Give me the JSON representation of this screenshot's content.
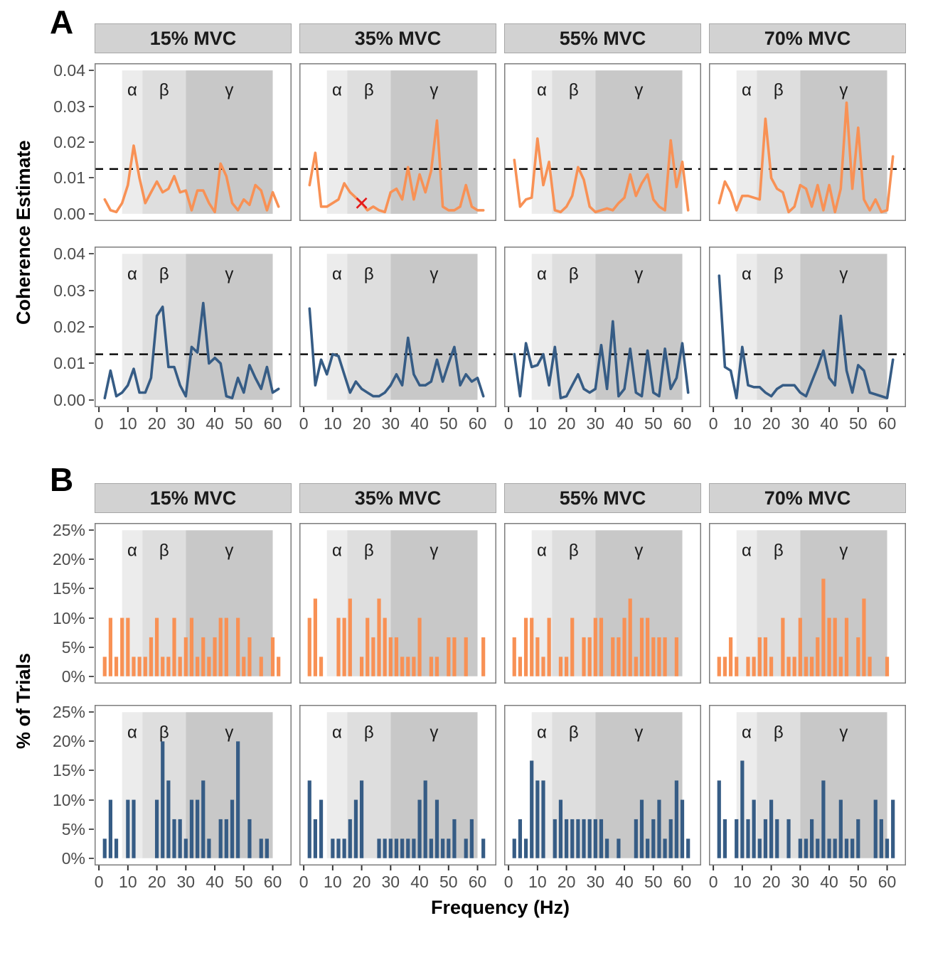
{
  "xlabel": "Frequency (Hz)",
  "colors": {
    "orange": "#F89155",
    "blue": "#365C85",
    "red": "#E41A1C",
    "band_alpha": "#ECECEC",
    "band_beta": "#DEDEDE",
    "band_gamma": "#C8C8C8",
    "header_bg": "#D2D2D2",
    "border": "#7D7D7D",
    "tick_text": "#4D4D4D",
    "threshold": "#000000"
  },
  "bands": [
    {
      "label": "α",
      "from": 8,
      "to": 15,
      "color_key": "band_alpha"
    },
    {
      "label": "β",
      "from": 15,
      "to": 30,
      "color_key": "band_beta"
    },
    {
      "label": "γ",
      "from": 30,
      "to": 60,
      "color_key": "band_gamma"
    }
  ],
  "chart_data": [
    {
      "panel": "A",
      "type": "line",
      "ylabel": "Coherence Estimate",
      "ylim": [
        0,
        0.04
      ],
      "yticks": [
        0,
        0.01,
        0.02,
        0.03,
        0.04
      ],
      "ytick_labels": [
        "0.00",
        "0.01",
        "0.02",
        "0.03",
        "0.04"
      ],
      "xticks": [
        0,
        10,
        20,
        30,
        40,
        50,
        60
      ],
      "threshold": 0.0125,
      "columns": [
        "15% MVC",
        "35% MVC",
        "55% MVC",
        "70% MVC"
      ],
      "x": [
        2,
        4,
        6,
        8,
        10,
        12,
        14,
        16,
        18,
        20,
        22,
        24,
        26,
        28,
        30,
        32,
        34,
        36,
        38,
        40,
        42,
        44,
        46,
        48,
        50,
        52,
        54,
        56,
        58,
        60,
        62
      ],
      "rows": [
        {
          "name": "coherence-row-1",
          "color_key": "orange",
          "series": [
            [
              0.004,
              0.001,
              0.0005,
              0.003,
              0.008,
              0.019,
              0.01,
              0.003,
              0.006,
              0.009,
              0.006,
              0.007,
              0.0105,
              0.006,
              0.0065,
              0.001,
              0.0065,
              0.0065,
              0.003,
              0.0005,
              0.014,
              0.0105,
              0.003,
              0.001,
              0.004,
              0.0025,
              0.008,
              0.0065,
              0.001,
              0.006,
              0.002
            ],
            [
              0.008,
              0.017,
              0.002,
              0.002,
              0.003,
              0.004,
              0.0085,
              0.006,
              0.0045,
              0.003,
              0.001,
              0.002,
              0.001,
              0.0005,
              0.006,
              0.007,
              0.004,
              0.013,
              0.004,
              0.011,
              0.006,
              0.012,
              0.026,
              0.002,
              0.001,
              0.001,
              0.002,
              0.008,
              0.002,
              0.001,
              0.001
            ],
            [
              0.015,
              0.002,
              0.004,
              0.0045,
              0.021,
              0.008,
              0.0145,
              0.001,
              0.0005,
              0.002,
              0.005,
              0.013,
              0.0095,
              0.002,
              0.0005,
              0.001,
              0.0015,
              0.001,
              0.003,
              0.0045,
              0.011,
              0.005,
              0.0085,
              0.011,
              0.004,
              0.002,
              0.001,
              0.0205,
              0.0075,
              0.0145,
              0.001
            ],
            [
              0.003,
              0.009,
              0.006,
              0.001,
              0.005,
              0.005,
              0.0045,
              0.004,
              0.0265,
              0.01,
              0.007,
              0.006,
              0.0005,
              0.002,
              0.008,
              0.007,
              0.002,
              0.008,
              0.001,
              0.008,
              0.0005,
              0.007,
              0.031,
              0.007,
              0.024,
              0.004,
              0.001,
              0.004,
              0.0005,
              0.001,
              0.016
            ]
          ],
          "markers": [
            {
              "col": 1,
              "x": 20,
              "y": 0.003,
              "shape": "x",
              "color_key": "red"
            }
          ]
        },
        {
          "name": "coherence-row-2",
          "color_key": "blue",
          "series": [
            [
              0.0005,
              0.008,
              0.001,
              0.002,
              0.004,
              0.0085,
              0.002,
              0.002,
              0.006,
              0.023,
              0.0255,
              0.009,
              0.009,
              0.004,
              0.001,
              0.0145,
              0.013,
              0.0265,
              0.01,
              0.0115,
              0.01,
              0.001,
              0.0005,
              0.006,
              0.002,
              0.0095,
              0.006,
              0.003,
              0.009,
              0.002,
              0.003
            ],
            [
              0.025,
              0.004,
              0.011,
              0.007,
              0.0125,
              0.012,
              0.007,
              0.002,
              0.005,
              0.003,
              0.002,
              0.001,
              0.001,
              0.002,
              0.004,
              0.007,
              0.004,
              0.017,
              0.007,
              0.004,
              0.004,
              0.005,
              0.011,
              0.005,
              0.01,
              0.0145,
              0.004,
              0.007,
              0.005,
              0.006,
              0.001
            ],
            [
              0.0125,
              0.001,
              0.0155,
              0.009,
              0.0095,
              0.0125,
              0.004,
              0.0145,
              0.0005,
              0.001,
              0.004,
              0.007,
              0.003,
              0.002,
              0.003,
              0.015,
              0.003,
              0.0215,
              0.001,
              0.003,
              0.014,
              0.002,
              0.001,
              0.0135,
              0.002,
              0.001,
              0.014,
              0.003,
              0.006,
              0.0155,
              0.002
            ],
            [
              0.034,
              0.009,
              0.008,
              0.0005,
              0.0145,
              0.004,
              0.0035,
              0.0035,
              0.002,
              0.001,
              0.003,
              0.004,
              0.004,
              0.004,
              0.002,
              0.001,
              0.005,
              0.009,
              0.0135,
              0.006,
              0.004,
              0.023,
              0.008,
              0.002,
              0.0095,
              0.008,
              0.002,
              0.0015,
              0.001,
              0.0005,
              0.011
            ]
          ],
          "markers": []
        }
      ]
    },
    {
      "panel": "B",
      "type": "bar",
      "ylabel": "% of Trials",
      "ylim": [
        0,
        25
      ],
      "yticks": [
        0,
        5,
        10,
        15,
        20,
        25
      ],
      "ytick_labels": [
        "0%",
        "5%",
        "10%",
        "15%",
        "20%",
        "25%"
      ],
      "xticks": [
        0,
        10,
        20,
        30,
        40,
        50,
        60
      ],
      "threshold": null,
      "columns": [
        "15% MVC",
        "35% MVC",
        "55% MVC",
        "70% MVC"
      ],
      "x": [
        2,
        4,
        6,
        8,
        10,
        12,
        14,
        16,
        18,
        20,
        22,
        24,
        26,
        28,
        30,
        32,
        34,
        36,
        38,
        40,
        42,
        44,
        46,
        48,
        50,
        52,
        54,
        56,
        58,
        60,
        62
      ],
      "rows": [
        {
          "name": "trials-row-1",
          "color_key": "orange",
          "series": [
            [
              3.33,
              10,
              3.33,
              10,
              10,
              3.33,
              3.33,
              3.33,
              6.67,
              10,
              3.33,
              3.33,
              10,
              3.33,
              6.67,
              10,
              3.33,
              6.67,
              3.33,
              6.67,
              10,
              10,
              0,
              10,
              3.33,
              6.67,
              0,
              3.33,
              0,
              6.67,
              3.33
            ],
            [
              10,
              13.3,
              3.33,
              0,
              0,
              10,
              10,
              13.3,
              0,
              3.33,
              10,
              6.67,
              13.3,
              10,
              6.67,
              6.67,
              3.33,
              3.33,
              3.33,
              10,
              0,
              3.33,
              3.33,
              0,
              6.67,
              6.67,
              0,
              6.67,
              0,
              0,
              6.67
            ],
            [
              6.67,
              3.33,
              10,
              10,
              6.67,
              3.33,
              10,
              0,
              3.33,
              3.33,
              10,
              0,
              6.67,
              6.67,
              10,
              10,
              0,
              6.67,
              6.67,
              10,
              13.3,
              3.33,
              10,
              10,
              6.67,
              6.67,
              6.67,
              0,
              6.67,
              0,
              0
            ],
            [
              3.33,
              3.33,
              6.67,
              3.33,
              0,
              3.33,
              3.33,
              6.67,
              6.67,
              3.33,
              0,
              10,
              3.33,
              3.33,
              10,
              3.33,
              3.33,
              6.67,
              16.7,
              10,
              10,
              3.33,
              10,
              0,
              6.67,
              13.3,
              3.33,
              0,
              0,
              3.33,
              0
            ]
          ],
          "markers": []
        },
        {
          "name": "trials-row-2",
          "color_key": "blue",
          "series": [
            [
              3.33,
              10,
              3.33,
              0,
              10,
              10,
              0,
              0,
              0,
              10,
              20,
              13.3,
              6.67,
              6.67,
              3.33,
              10,
              10,
              13.3,
              3.33,
              0,
              6.67,
              6.67,
              10,
              20,
              0,
              6.67,
              0,
              3.33,
              3.33,
              0,
              0
            ],
            [
              13.3,
              6.67,
              10,
              0,
              3.33,
              3.33,
              3.33,
              6.67,
              10,
              13.3,
              0,
              0,
              3.33,
              3.33,
              3.33,
              3.33,
              3.33,
              3.33,
              3.33,
              10,
              13.3,
              3.33,
              10,
              3.33,
              3.33,
              6.67,
              0,
              3.33,
              6.67,
              0,
              3.33
            ],
            [
              3.33,
              6.67,
              3.33,
              16.7,
              13.3,
              13.3,
              0,
              6.67,
              10,
              6.67,
              6.67,
              6.67,
              6.67,
              6.67,
              6.67,
              6.67,
              3.33,
              0,
              3.33,
              0,
              0,
              6.67,
              10,
              3.33,
              6.67,
              10,
              3.33,
              6.67,
              13.3,
              10,
              3.33
            ],
            [
              13.3,
              6.67,
              0,
              6.67,
              16.7,
              6.67,
              10,
              3.33,
              6.67,
              10,
              6.67,
              0,
              6.67,
              0,
              3.33,
              3.33,
              6.67,
              3.33,
              13.3,
              3.33,
              3.33,
              10,
              3.33,
              3.33,
              6.67,
              0,
              0,
              10,
              6.67,
              3.33,
              10
            ]
          ],
          "markers": []
        }
      ]
    }
  ]
}
